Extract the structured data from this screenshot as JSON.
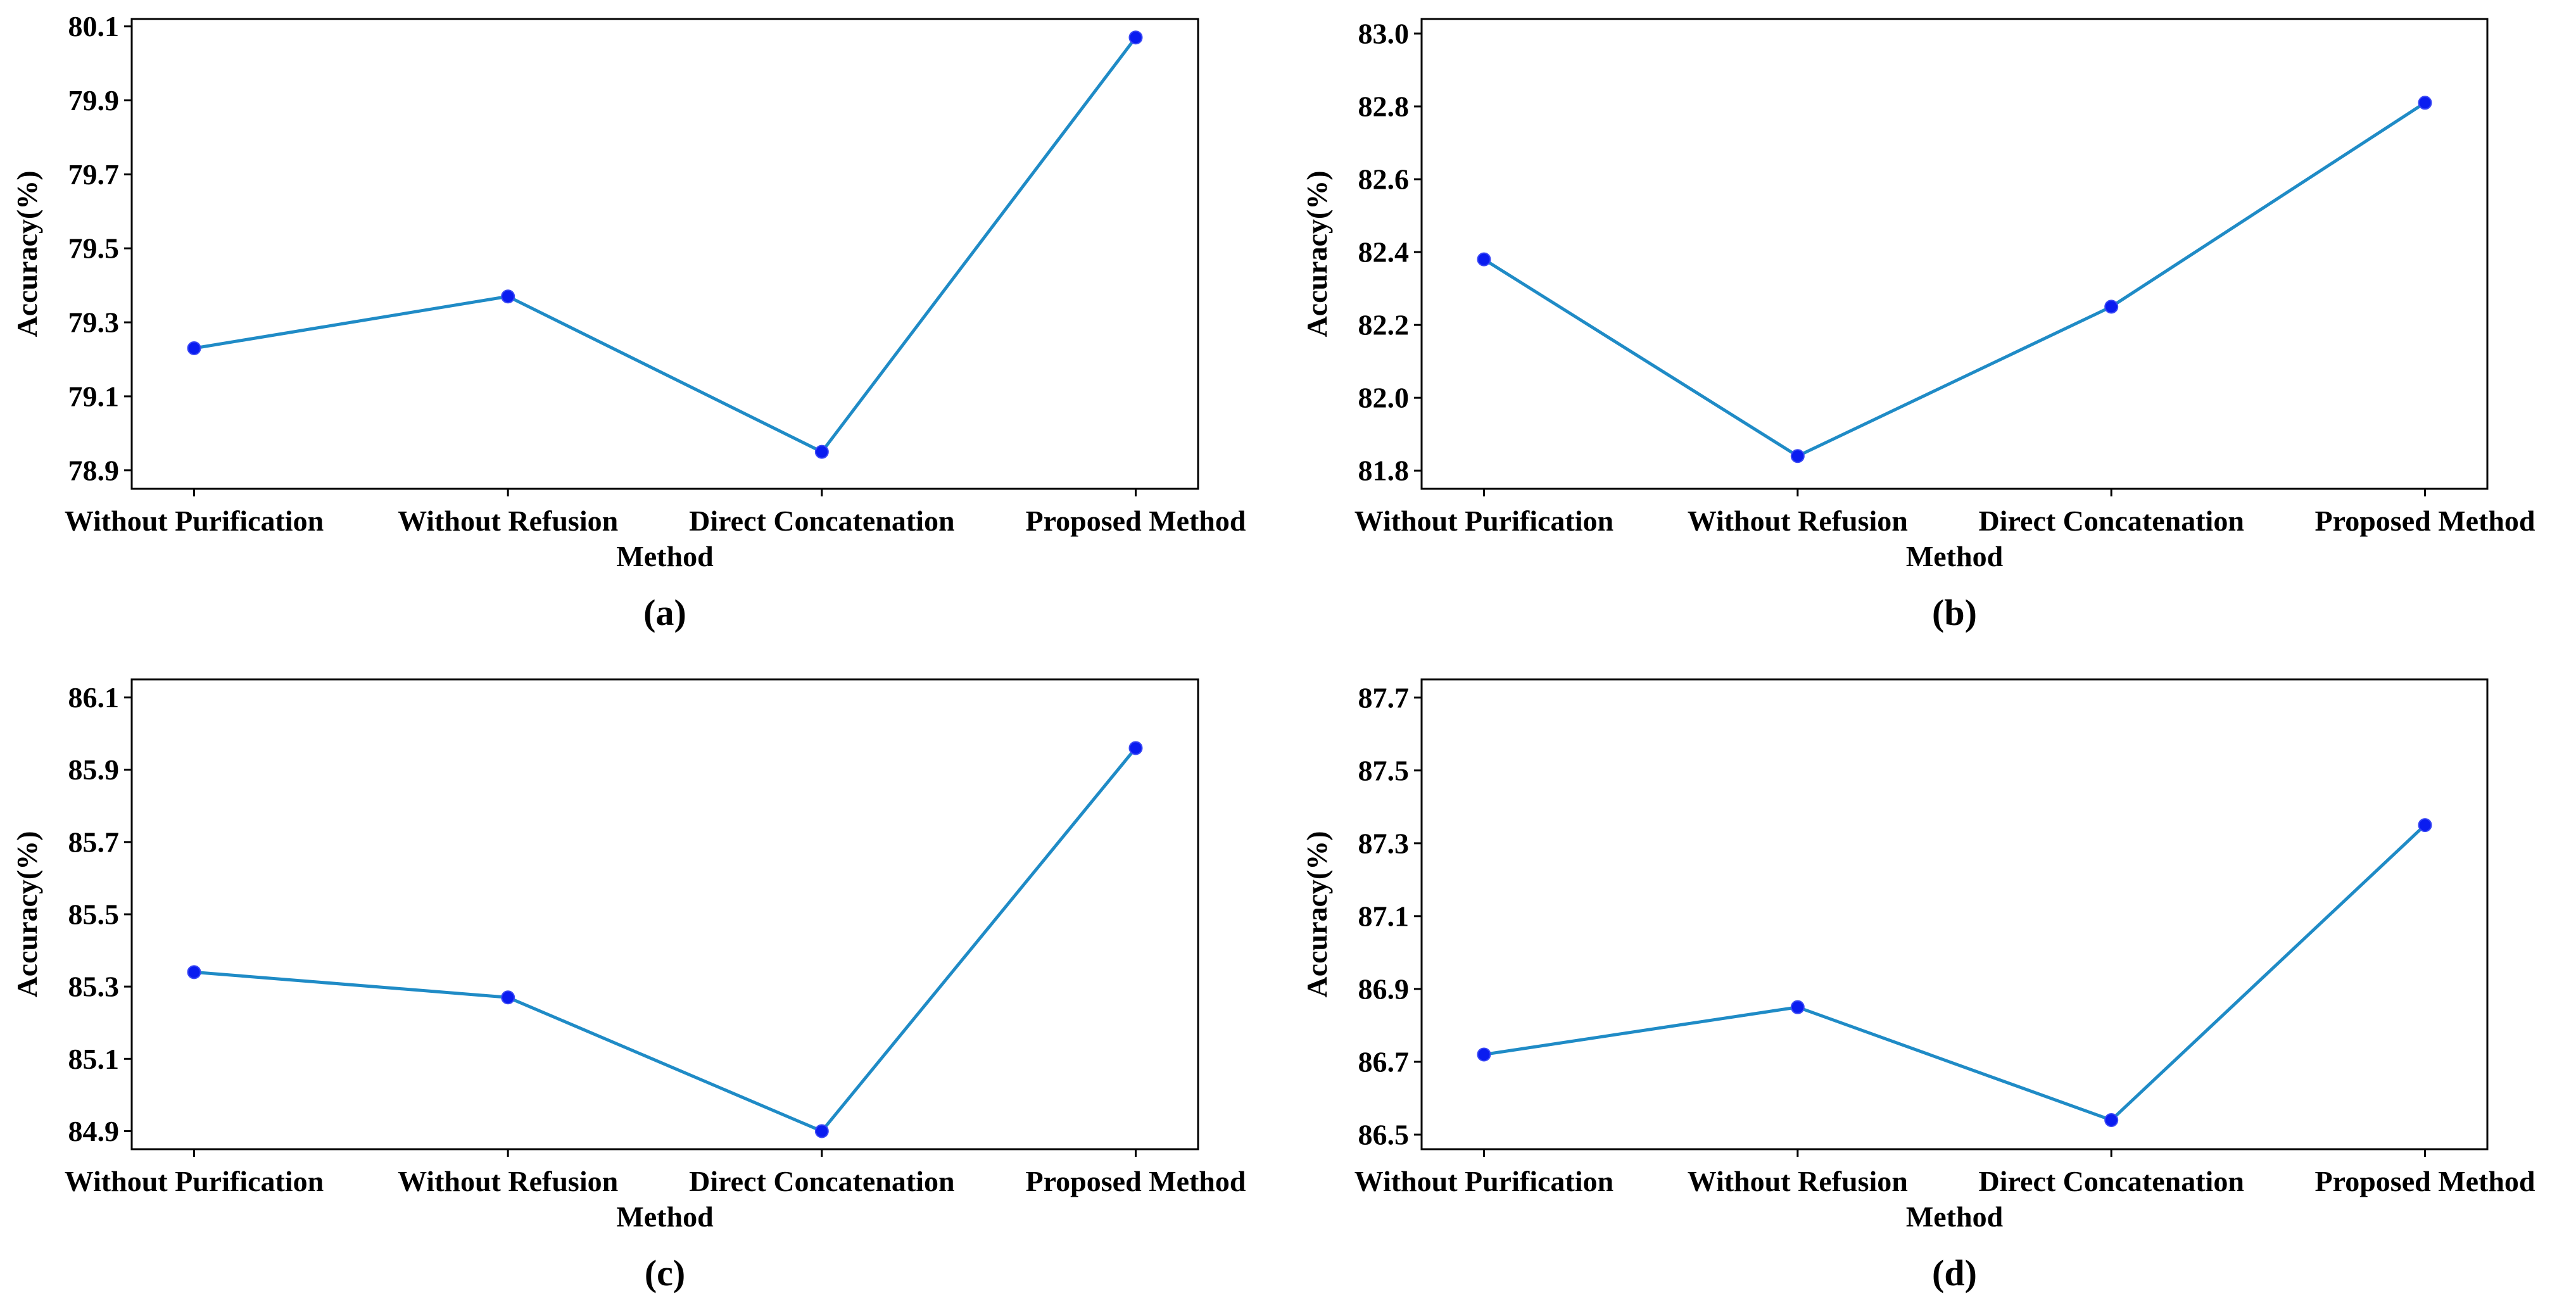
{
  "colors": {
    "line": "#1f8bc6",
    "marker": "#0a1cf0",
    "axis": "#000000"
  },
  "chart_data": [
    {
      "type": "line",
      "panel_label": "(a)",
      "xlabel": "Method",
      "ylabel": "Accuracy(%)",
      "categories": [
        "Without Purification",
        "Without Refusion",
        "Direct Concatenation",
        "Proposed Method"
      ],
      "values": [
        79.23,
        79.37,
        78.95,
        80.07
      ],
      "ylim": [
        78.85,
        80.12
      ],
      "yticks": [
        "78.9",
        "79.1",
        "79.3",
        "79.5",
        "79.7",
        "79.9",
        "80.1"
      ],
      "grid": false
    },
    {
      "type": "line",
      "panel_label": "(b)",
      "xlabel": "Method",
      "ylabel": "Accuracy(%)",
      "categories": [
        "Without Purification",
        "Without Refusion",
        "Direct Concatenation",
        "Proposed Method"
      ],
      "values": [
        82.38,
        81.84,
        82.25,
        82.81
      ],
      "ylim": [
        81.75,
        83.04
      ],
      "yticks": [
        "81.8",
        "82.0",
        "82.2",
        "82.4",
        "82.6",
        "82.8",
        "83.0"
      ],
      "grid": false
    },
    {
      "type": "line",
      "panel_label": "(c)",
      "xlabel": "Method",
      "ylabel": "Accuracy(%)",
      "categories": [
        "Without Purification",
        "Without Refusion",
        "Direct Concatenation",
        "Proposed Method"
      ],
      "values": [
        85.34,
        85.27,
        84.9,
        85.96
      ],
      "ylim": [
        84.85,
        86.15
      ],
      "yticks": [
        "84.9",
        "85.1",
        "85.3",
        "85.5",
        "85.7",
        "85.9",
        "86.1"
      ],
      "grid": false
    },
    {
      "type": "line",
      "panel_label": "(d)",
      "xlabel": "Method",
      "ylabel": "Accuracy(%)",
      "categories": [
        "Without Purification",
        "Without Refusion",
        "Direct Concatenation",
        "Proposed Method"
      ],
      "values": [
        86.72,
        86.85,
        86.54,
        87.35
      ],
      "ylim": [
        86.46,
        87.75
      ],
      "yticks": [
        "86.5",
        "86.7",
        "86.9",
        "87.1",
        "87.3",
        "87.5",
        "87.7"
      ],
      "grid": false
    }
  ]
}
